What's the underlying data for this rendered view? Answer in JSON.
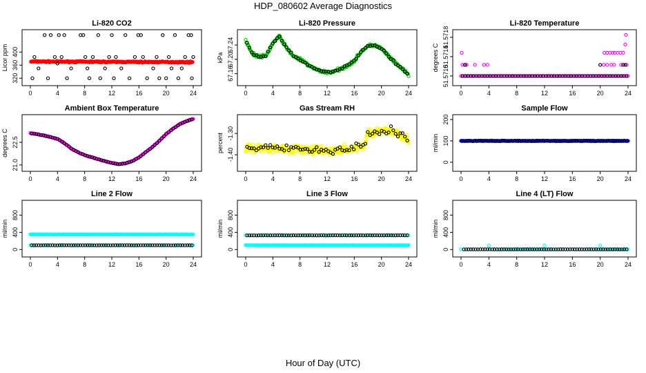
{
  "page": {
    "title": "HDP_080602  Average Diagnostics",
    "xlabel": "Hour of Day (UTC)"
  },
  "chart_data": [
    {
      "type": "scatter",
      "title": "Li-820 CO2",
      "ylabel": "Licor ppm",
      "xlim": [
        0,
        24
      ],
      "ylim": [
        312,
        460
      ],
      "xticks": [
        0,
        4,
        8,
        12,
        16,
        20,
        24
      ],
      "yticks": [
        320,
        360,
        400
      ],
      "series": [
        {
          "name": "average",
          "color": "#ff0000",
          "kind": "dense",
          "x_range": [
            0.1,
            23.9
          ],
          "y_start": 371,
          "y_end": 369,
          "noise": 3,
          "n": 300
        },
        {
          "name": "extremes",
          "color": "#000000",
          "kind": "points",
          "points": [
            [
              0.3,
              320
            ],
            [
              0.6,
              385
            ],
            [
              1.2,
              350
            ],
            [
              2.1,
              452
            ],
            [
              2.6,
              320
            ],
            [
              3.0,
              452
            ],
            [
              3.6,
              385
            ],
            [
              4.0,
              365
            ],
            [
              4.2,
              452
            ],
            [
              4.6,
              385
            ],
            [
              5.0,
              452
            ],
            [
              5.4,
              320
            ],
            [
              6.0,
              350
            ],
            [
              7.4,
              452
            ],
            [
              7.8,
              452
            ],
            [
              8.1,
              385
            ],
            [
              8.4,
              350
            ],
            [
              8.7,
              320
            ],
            [
              9.2,
              385
            ],
            [
              10.0,
              452
            ],
            [
              10.3,
              320
            ],
            [
              11.0,
              350
            ],
            [
              11.6,
              385
            ],
            [
              12.0,
              452
            ],
            [
              12.3,
              320
            ],
            [
              12.6,
              385
            ],
            [
              13.4,
              350
            ],
            [
              14.0,
              452
            ],
            [
              14.6,
              320
            ],
            [
              15.4,
              385
            ],
            [
              15.9,
              452
            ],
            [
              16.3,
              452
            ],
            [
              16.6,
              385
            ],
            [
              17.2,
              320
            ],
            [
              18.1,
              350
            ],
            [
              18.6,
              385
            ],
            [
              19.0,
              320
            ],
            [
              19.5,
              452
            ],
            [
              20.0,
              320
            ],
            [
              20.4,
              385
            ],
            [
              20.8,
              350
            ],
            [
              21.3,
              452
            ],
            [
              21.8,
              320
            ],
            [
              22.3,
              350
            ],
            [
              22.8,
              385
            ],
            [
              23.3,
              452
            ],
            [
              23.7,
              452
            ],
            [
              24.0,
              385
            ],
            [
              23.8,
              320
            ]
          ]
        }
      ]
    },
    {
      "type": "scatter",
      "title": "Li-820 Pressure",
      "ylabel": "kPa",
      "xlim": [
        0,
        24
      ],
      "ylim": [
        67.14,
        67.275
      ],
      "xticks": [
        0,
        4,
        8,
        12,
        16,
        20,
        24
      ],
      "yticks": [
        67.16,
        67.2,
        67.24
      ],
      "ytick_labels": [
        "67.16",
        "67.20",
        "67.24"
      ],
      "series": [
        {
          "name": "average",
          "color": "#00cc00",
          "kind": "curve",
          "knots": [
            [
              0.0,
              67.253
            ],
            [
              1.0,
              67.215
            ],
            [
              2.0,
              67.207
            ],
            [
              3.0,
              67.21
            ],
            [
              4.0,
              67.245
            ],
            [
              5.0,
              67.265
            ],
            [
              6.0,
              67.232
            ],
            [
              7.0,
              67.21
            ],
            [
              8.0,
              67.2
            ],
            [
              9.0,
              67.187
            ],
            [
              10.0,
              67.175
            ],
            [
              11.0,
              67.168
            ],
            [
              12.0,
              67.163
            ],
            [
              13.0,
              67.166
            ],
            [
              14.0,
              67.173
            ],
            [
              15.0,
              67.183
            ],
            [
              16.0,
              67.195
            ],
            [
              17.0,
              67.222
            ],
            [
              18.0,
              67.237
            ],
            [
              19.0,
              67.24
            ],
            [
              20.0,
              67.23
            ],
            [
              21.0,
              67.21
            ],
            [
              22.0,
              67.19
            ],
            [
              23.0,
              67.175
            ],
            [
              24.0,
              67.155
            ]
          ],
          "noise": 0.006,
          "n": 280
        },
        {
          "name": "points",
          "color": "#000000",
          "kind": "sample",
          "noise": 0.004,
          "n": 70,
          "follow": 0
        }
      ]
    },
    {
      "type": "scatter",
      "title": "Li-820 Temperature",
      "ylabel": "degrees C",
      "xlim": [
        0,
        24
      ],
      "ylim": [
        51.5709,
        51.5719
      ],
      "xticks": [
        0,
        4,
        8,
        12,
        16,
        20,
        24
      ],
      "yticks": [
        51.571,
        51.5714,
        51.5718
      ],
      "ytick_labels": [
        "51.5710",
        "51.5714",
        "51.5718"
      ],
      "series": [
        {
          "name": "baseline",
          "color": "#ff00ff",
          "kind": "flat",
          "x_range": [
            0.0,
            24.0
          ],
          "y": 51.571,
          "n": 90
        },
        {
          "name": "baseline-black",
          "color": "#000000",
          "kind": "flat",
          "x_range": [
            0.2,
            23.8
          ],
          "y": 51.571,
          "n": 60
        },
        {
          "name": "high",
          "color": "#ff00ff",
          "kind": "points",
          "points": [
            [
              0.1,
              51.57148
            ],
            [
              0.2,
              51.57123
            ],
            [
              0.5,
              51.57123
            ],
            [
              0.8,
              51.57123
            ],
            [
              2.0,
              51.57123
            ],
            [
              3.3,
              51.57123
            ],
            [
              3.8,
              51.57123
            ],
            [
              20.6,
              51.57148
            ],
            [
              21.0,
              51.57148
            ],
            [
              21.4,
              51.57148
            ],
            [
              21.8,
              51.57148
            ],
            [
              22.1,
              51.57148
            ],
            [
              22.5,
              51.57148
            ],
            [
              22.9,
              51.57148
            ],
            [
              23.3,
              51.57148
            ],
            [
              23.6,
              51.57165
            ],
            [
              23.7,
              51.57185
            ],
            [
              23.8,
              51.57123
            ],
            [
              21.0,
              51.57123
            ],
            [
              22.0,
              51.57123
            ],
            [
              23.0,
              51.57123
            ],
            [
              20.5,
              51.57123
            ],
            [
              21.6,
              51.57123
            ]
          ]
        },
        {
          "name": "high-black",
          "color": "#000000",
          "kind": "points",
          "points": [
            [
              0.6,
              51.57123
            ],
            [
              20.0,
              51.57123
            ],
            [
              23.6,
              51.57123
            ],
            [
              23.3,
              51.57123
            ]
          ]
        }
      ]
    },
    {
      "type": "scatter",
      "title": "Ambient Box Temperature",
      "ylabel": "degrees C",
      "xlim": [
        0,
        24
      ],
      "ylim": [
        20.9,
        24.15
      ],
      "xticks": [
        0,
        4,
        8,
        12,
        16,
        20,
        24
      ],
      "yticks": [
        21.0,
        22.5
      ],
      "ytick_labels": [
        "21.0",
        "22.5"
      ],
      "series": [
        {
          "name": "average",
          "color": "#ff00ff",
          "kind": "curve",
          "knots": [
            [
              0.0,
              23.1
            ],
            [
              1.0,
              23.05
            ],
            [
              2.0,
              22.95
            ],
            [
              3.0,
              22.85
            ],
            [
              4.0,
              22.72
            ],
            [
              5.0,
              22.45
            ],
            [
              6.0,
              22.1
            ],
            [
              7.0,
              21.85
            ],
            [
              8.0,
              21.65
            ],
            [
              9.0,
              21.52
            ],
            [
              10.0,
              21.38
            ],
            [
              11.0,
              21.25
            ],
            [
              12.0,
              21.13
            ],
            [
              13.0,
              21.05
            ],
            [
              14.0,
              21.1
            ],
            [
              15.0,
              21.25
            ],
            [
              16.0,
              21.5
            ],
            [
              17.0,
              21.85
            ],
            [
              18.0,
              22.2
            ],
            [
              19.0,
              22.6
            ],
            [
              20.0,
              23.05
            ],
            [
              21.0,
              23.4
            ],
            [
              22.0,
              23.7
            ],
            [
              23.0,
              23.9
            ],
            [
              24.0,
              24.05
            ]
          ],
          "noise": 0.03,
          "n": 240
        },
        {
          "name": "points",
          "color": "#000000",
          "kind": "sample",
          "noise": 0.02,
          "n": 70,
          "follow": 0
        }
      ]
    },
    {
      "type": "scatter",
      "title": "Gas Stream RH",
      "ylabel": "percent",
      "xlim": [
        0,
        24
      ],
      "ylim": [
        -1.455,
        -1.225
      ],
      "xticks": [
        0,
        4,
        8,
        12,
        16,
        20,
        24
      ],
      "yticks": [
        -1.4,
        -1.3
      ],
      "ytick_labels": [
        "-1.40",
        "-1.30"
      ],
      "series": [
        {
          "name": "average",
          "color": "#ffff00",
          "kind": "curve",
          "knots": [
            [
              0.0,
              -1.37
            ],
            [
              4.0,
              -1.37
            ],
            [
              8.0,
              -1.375
            ],
            [
              12.0,
              -1.385
            ],
            [
              16.0,
              -1.37
            ],
            [
              17.5,
              -1.36
            ],
            [
              18.0,
              -1.3
            ],
            [
              20.0,
              -1.29
            ],
            [
              22.0,
              -1.29
            ],
            [
              24.0,
              -1.33
            ]
          ],
          "noise": 0.028,
          "n": 420
        },
        {
          "name": "points",
          "color": "#000000",
          "kind": "sample",
          "noise": 0.03,
          "n": 70,
          "follow": 0
        }
      ]
    },
    {
      "type": "scatter",
      "title": "Sample Flow",
      "ylabel": "ml/min",
      "xlim": [
        0,
        24
      ],
      "ylim": [
        -20,
        210
      ],
      "xticks": [
        0,
        4,
        8,
        12,
        16,
        20,
        24
      ],
      "yticks": [
        0,
        100,
        200
      ],
      "series": [
        {
          "name": "average",
          "color": "#0000ff",
          "kind": "flat",
          "x_range": [
            0.0,
            24.0
          ],
          "y": 100,
          "n": 260,
          "noise": 2
        },
        {
          "name": "points",
          "color": "#000000",
          "kind": "flat",
          "x_range": [
            0.2,
            23.8
          ],
          "y": 100,
          "n": 70,
          "noise": 2
        }
      ]
    },
    {
      "type": "scatter",
      "title": "Line 2 Flow",
      "ylabel": "ml/min",
      "xlim": [
        0,
        24
      ],
      "ylim": [
        -60,
        1080
      ],
      "xticks": [
        0,
        4,
        8,
        12,
        16,
        20,
        24
      ],
      "yticks": [
        0,
        400,
        800
      ],
      "series": [
        {
          "name": "high-flow",
          "color": "#00ffff",
          "kind": "flat",
          "x_range": [
            0.0,
            24.0
          ],
          "y": 350,
          "n": 240,
          "noise": 5
        },
        {
          "name": "low-flow",
          "color": "#00ffff",
          "kind": "flat",
          "x_range": [
            0.0,
            24.0
          ],
          "y": 100,
          "n": 60,
          "noise": 2
        },
        {
          "name": "points",
          "color": "#000000",
          "kind": "flat",
          "x_range": [
            0.2,
            23.8
          ],
          "y": 100,
          "n": 70,
          "noise": 2
        }
      ]
    },
    {
      "type": "scatter",
      "title": "Line 3 Flow",
      "ylabel": "ml/min",
      "xlim": [
        0,
        24
      ],
      "ylim": [
        -60,
        1080
      ],
      "xticks": [
        0,
        4,
        8,
        12,
        16,
        20,
        24
      ],
      "yticks": [
        0,
        400,
        800
      ],
      "series": [
        {
          "name": "low-flow",
          "color": "#00ffff",
          "kind": "flat",
          "x_range": [
            0.0,
            24.0
          ],
          "y": 100,
          "n": 240,
          "noise": 4
        },
        {
          "name": "high-flow",
          "color": "#00ffff",
          "kind": "flat",
          "x_range": [
            0.0,
            24.0
          ],
          "y": 330,
          "n": 40,
          "noise": 3
        },
        {
          "name": "points",
          "color": "#000000",
          "kind": "flat",
          "x_range": [
            0.2,
            23.8
          ],
          "y": 330,
          "n": 70,
          "noise": 3
        }
      ]
    },
    {
      "type": "scatter",
      "title": "Line 4 (LT) Flow",
      "ylabel": "ml/min",
      "xlim": [
        0,
        24
      ],
      "ylim": [
        -60,
        1080
      ],
      "xticks": [
        0,
        4,
        8,
        12,
        16,
        20,
        24
      ],
      "yticks": [
        0,
        400,
        800
      ],
      "series": [
        {
          "name": "average",
          "color": "#00ffff",
          "kind": "flat",
          "x_range": [
            0.0,
            24.0
          ],
          "y": 5,
          "n": 70,
          "noise": 1
        },
        {
          "name": "points",
          "color": "#000000",
          "kind": "flat",
          "x_range": [
            0.4,
            23.8
          ],
          "y": 5,
          "n": 70,
          "noise": 1
        },
        {
          "name": "spikes",
          "color": "#00ffff",
          "kind": "points",
          "points": [
            [
              4.0,
              90
            ],
            [
              12.0,
              90
            ],
            [
              20.0,
              90
            ]
          ]
        }
      ]
    }
  ]
}
